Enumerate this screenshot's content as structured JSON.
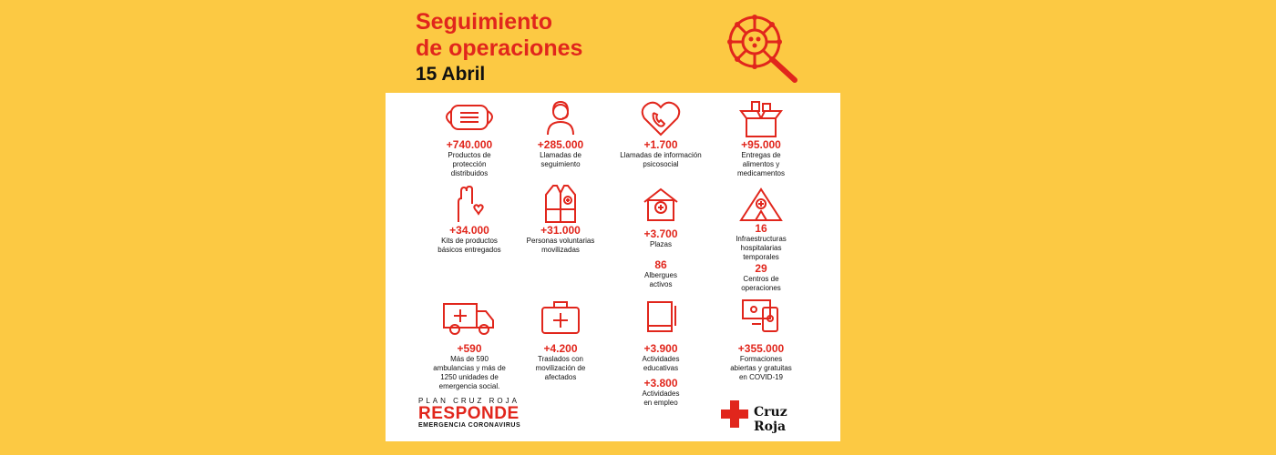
{
  "header": {
    "title_line1": "Seguimiento",
    "title_line2": "de operaciones",
    "date": "15 Abril"
  },
  "icons": {
    "virus": "virus-magnifier-icon"
  },
  "items": {
    "mask": {
      "num": "+740.000",
      "l1": "Productos de",
      "l2": "protección",
      "l3": "distribuidos"
    },
    "calls": {
      "num": "+285.000",
      "l1": "Llamadas de",
      "l2": "seguimiento"
    },
    "psy": {
      "num": "+1.700",
      "l1": "Llamadas de información",
      "l2": "psicosocial"
    },
    "food": {
      "num": "+95.000",
      "l1": "Entregas de",
      "l2": "alimentos y",
      "l3": "medicamentos"
    },
    "kits": {
      "num": "+34.000",
      "l1": "Kits de productos",
      "l2": "básicos entregados"
    },
    "vol": {
      "num": "+31.000",
      "l1": "Personas voluntarias",
      "l2": "movilizadas"
    },
    "plazas": {
      "num": "+3.700",
      "l1": "Plazas",
      "num2": "86",
      "l2": "Albergues",
      "l3": "activos"
    },
    "infra": {
      "num": "16",
      "l1": "Infraestructuras",
      "l2": "hospitalarias",
      "l3": "temporales",
      "num2": "29",
      "l4": "Centros de",
      "l5": "operaciones"
    },
    "amb": {
      "num": "+590",
      "l1": "Más de 590",
      "l2": "ambulancias y más de",
      "l3": "1250 unidades de",
      "l4": "emergencia social."
    },
    "tras": {
      "num": "+4.200",
      "l1": "Traslados con",
      "l2": "movilización de",
      "l3": "afectados"
    },
    "edu": {
      "num": "+3.900",
      "l1": "Actividades",
      "l2": "educativas",
      "num2": "+3.800",
      "l3": "Actividades",
      "l4": "en empleo"
    },
    "form": {
      "num": "+355.000",
      "l1": "Formaciones",
      "l2": "abiertas y gratuitas",
      "l3": "en COVID-19"
    }
  },
  "footer": {
    "plan": "PLAN CRUZ ROJA",
    "responde": "RESPONDE",
    "emergencia": "EMERGENCIA CORONAVIRUS",
    "cruz_roja": "Cruz Roja"
  },
  "colors": {
    "accent": "#e1261c",
    "background": "#fcc943"
  }
}
